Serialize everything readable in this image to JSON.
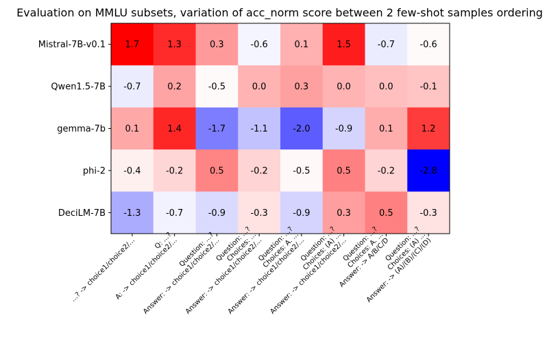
{
  "chart_data": {
    "type": "heatmap",
    "title": "Evaluation on MMLU subsets, variation of acc_norm score between 2 few-shot samples ordering",
    "xlabel": "",
    "ylabel": "",
    "rows": [
      "Mistral-7B-v0.1",
      "Qwen1.5-7B",
      "gemma-7b",
      "phi-2",
      "DeciLM-7B"
    ],
    "columns": [
      [
        "...? -> choice1/choice2/..."
      ],
      [
        "Q: ...?",
        "A: -> choice1/choice2/..."
      ],
      [
        "Question: ...?",
        "Answer: -> choice1/choice2/..."
      ],
      [
        "Question: ...?",
        "Choices: ...",
        "Answer: -> choice1/choice2/..."
      ],
      [
        "Question: ...?",
        "Choices: A. ...",
        "Answer: -> choice1/choice2/..."
      ],
      [
        "Question: ...?",
        "Choices: (A) ...",
        "Answer: -> choice1/choice2/..."
      ],
      [
        "Question: ...?",
        "Choices: A. ...",
        "Answer: -> A/B/C/D"
      ],
      [
        "Question: ...?",
        "Choices: (A) ...",
        "Answer: -> (A)/(B)/(C)/(D)"
      ]
    ],
    "values": [
      [
        1.7,
        1.3,
        0.3,
        -0.6,
        0.1,
        1.5,
        -0.7,
        -0.6
      ],
      [
        -0.7,
        0.2,
        -0.5,
        0.0,
        0.3,
        0.0,
        0.0,
        -0.1
      ],
      [
        0.1,
        1.4,
        -1.7,
        -1.1,
        -2.0,
        -0.9,
        0.1,
        1.2
      ],
      [
        -0.4,
        -0.2,
        0.5,
        -0.2,
        -0.5,
        0.5,
        -0.2,
        -2.8
      ],
      [
        -1.3,
        -0.7,
        -0.9,
        -0.3,
        -0.9,
        0.3,
        0.5,
        -0.3
      ]
    ],
    "cell_colors": [
      [
        "#ff0000",
        "#ff2a2a",
        "#ff9a9a",
        "#f5f5ff",
        "#ffb0b0",
        "#ff1c1c",
        "#ececff",
        "#fffafa"
      ],
      [
        "#ececff",
        "#ffa4a4",
        "#fffafa",
        "#ffb3b3",
        "#ffa0a0",
        "#ffb3b3",
        "#ffbfbf",
        "#ffc4c4"
      ],
      [
        "#ffa8a8",
        "#ff2626",
        "#7d7dff",
        "#c2c2ff",
        "#5c5cff",
        "#d4d4ff",
        "#ffacac",
        "#ff3c3c"
      ],
      [
        "#fff0f0",
        "#ffd6d6",
        "#ff8484",
        "#ffd4d4",
        "#fff8f8",
        "#ff8080",
        "#ffd4d4",
        "#0000ff"
      ],
      [
        "#acacff",
        "#f2f2ff",
        "#dadaff",
        "#ffe2e2",
        "#d4d4ff",
        "#ff9e9e",
        "#ff8080",
        "#ffe2e2"
      ]
    ],
    "colormap": "bwr",
    "grid": false,
    "legend": "none"
  }
}
